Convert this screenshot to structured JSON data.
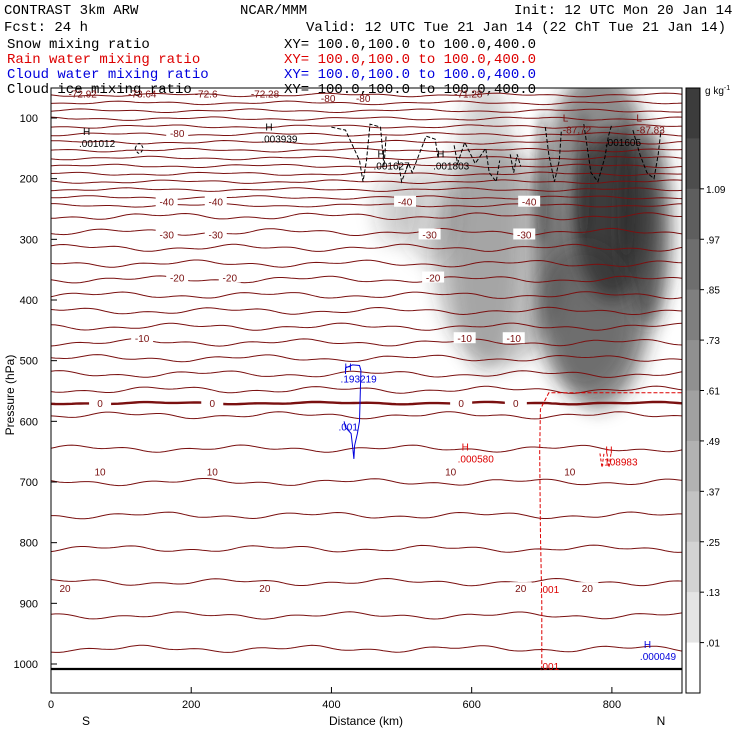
{
  "header": {
    "line1_left": "CONTRAST  3km ARW",
    "line1_center": "NCAR/MMM",
    "line1_right": "Init: 12 UTC Mon 20 Jan 14",
    "line2_left": "Fcst:   24 h",
    "line2_right": "Valid: 12 UTC Tue 21 Jan 14 (22 ChT Tue 21 Jan 14)",
    "fields": [
      {
        "name": "Snow mixing ratio",
        "xy": "XY=  100.0,100.0 to 100.0,400.0",
        "color": "#000000"
      },
      {
        "name": "Rain water mixing ratio",
        "xy": "XY=  100.0,100.0 to 100.0,400.0",
        "color": "#dd0000"
      },
      {
        "name": "Cloud water mixing ratio",
        "xy": "XY=  100.0,100.0 to 100.0,400.0",
        "color": "#0000dd"
      },
      {
        "name": "Cloud ice mixing ratio",
        "xy": "XY=  100.0,100.0 to 100.0,400.0",
        "color": "#000000"
      }
    ]
  },
  "chart_data": {
    "type": "cross-section contour",
    "xlabel": "Distance (km)",
    "ylabel": "Pressure (hPa)",
    "xlim": [
      0,
      900
    ],
    "ylim": [
      1040,
      50
    ],
    "x_ticks": [
      0,
      200,
      400,
      600,
      800
    ],
    "y_ticks": [
      100,
      200,
      300,
      400,
      500,
      600,
      700,
      800,
      900,
      1000
    ],
    "x_end_labels": {
      "left": "S",
      "right": "N"
    },
    "colorbar": {
      "unit": "g kg",
      "unit_exp": "-1",
      "labels": [
        ".01",
        ".13",
        ".25",
        ".37",
        ".49",
        ".61",
        ".73",
        ".85",
        ".97",
        "1.09"
      ]
    },
    "temperature_isotherms": [
      {
        "value": -80,
        "p": 125,
        "labels": [
          {
            "x": 180,
            "text": "-80"
          }
        ]
      },
      {
        "value": -40,
        "p": 238,
        "labels": [
          {
            "x": 165,
            "text": "-40"
          },
          {
            "x": 235,
            "text": "-40"
          },
          {
            "x": 505,
            "text": "-40"
          },
          {
            "x": 682,
            "text": "-40"
          }
        ]
      },
      {
        "value": -30,
        "p": 292,
        "labels": [
          {
            "x": 165,
            "text": "-30"
          },
          {
            "x": 235,
            "text": "-30"
          },
          {
            "x": 540,
            "text": "-30"
          },
          {
            "x": 675,
            "text": "-30"
          }
        ]
      },
      {
        "value": -20,
        "p": 363,
        "labels": [
          {
            "x": 180,
            "text": "-20"
          },
          {
            "x": 255,
            "text": "-20"
          },
          {
            "x": 545,
            "text": "-20"
          }
        ]
      },
      {
        "value": -10,
        "p": 463,
        "labels": [
          {
            "x": 130,
            "text": "-10"
          },
          {
            "x": 590,
            "text": "-10"
          },
          {
            "x": 660,
            "text": "-10"
          }
        ]
      },
      {
        "value": 0,
        "p": 570,
        "labels": [
          {
            "x": 70,
            "text": "0"
          },
          {
            "x": 230,
            "text": "0"
          },
          {
            "x": 585,
            "text": "0"
          },
          {
            "x": 663,
            "text": "0"
          }
        ]
      },
      {
        "value": 10,
        "p": 683,
        "labels": [
          {
            "x": 70,
            "text": "10"
          },
          {
            "x": 230,
            "text": "10"
          },
          {
            "x": 570,
            "text": "10"
          },
          {
            "x": 740,
            "text": "10"
          }
        ]
      },
      {
        "value": 20,
        "p": 875,
        "labels": [
          {
            "x": 20,
            "text": "20"
          },
          {
            "x": 305,
            "text": "20"
          },
          {
            "x": 670,
            "text": "20"
          },
          {
            "x": 765,
            "text": "20"
          }
        ]
      }
    ],
    "top_temperature_labels": [
      {
        "x": 25,
        "p": 66,
        "text": "-72.92"
      },
      {
        "x": 110,
        "p": 66,
        "text": "-73.64"
      },
      {
        "x": 205,
        "p": 66,
        "text": "-72.6"
      },
      {
        "x": 285,
        "p": 66,
        "text": "-72.28"
      },
      {
        "x": 385,
        "p": 74,
        "text": "-80"
      },
      {
        "x": 435,
        "p": 74,
        "text": "-80"
      },
      {
        "x": 575,
        "p": 66,
        "text": "-71.28"
      }
    ],
    "extrema": [
      {
        "x": 40,
        "p": 135,
        "letter": "H",
        "value": ".001012",
        "color": "#000000"
      },
      {
        "x": 300,
        "p": 127,
        "letter": "H",
        "value": ".003939",
        "color": "#000000"
      },
      {
        "x": 460,
        "p": 172,
        "letter": "H",
        "value": ".001627",
        "color": "#000000"
      },
      {
        "x": 545,
        "p": 172,
        "letter": "H",
        "value": ".001803",
        "color": "#000000"
      },
      {
        "x": 790,
        "p": 133,
        "letter": "",
        "value": ".001605",
        "color": "#000000"
      },
      {
        "x": 413,
        "p": 523,
        "letter": "H",
        "value": ".193219",
        "color": "#0000dd"
      },
      {
        "x": 580,
        "p": 655,
        "letter": "H",
        "value": ".000580",
        "color": "#dd0000"
      },
      {
        "x": 785,
        "p": 660,
        "letter": "H",
        "value": ".108983",
        "color": "#dd0000"
      },
      {
        "x": 840,
        "p": 980,
        "letter": "H",
        "value": ".000049",
        "color": "#0000dd"
      }
    ],
    "lows": [
      {
        "x": 730,
        "p": 112,
        "letter": "L",
        "value": "-87.72"
      },
      {
        "x": 835,
        "p": 112,
        "letter": "L",
        "value": "-87.83"
      }
    ],
    "small_contour_labels": [
      {
        "x": 410,
        "p": 615,
        "text": ".001",
        "color": "#0000dd"
      },
      {
        "x": 697,
        "p": 883,
        "text": ".001",
        "color": "#dd0000"
      },
      {
        "x": 697,
        "p": 1010,
        "text": ".001",
        "color": "#dd0000"
      }
    ]
  }
}
